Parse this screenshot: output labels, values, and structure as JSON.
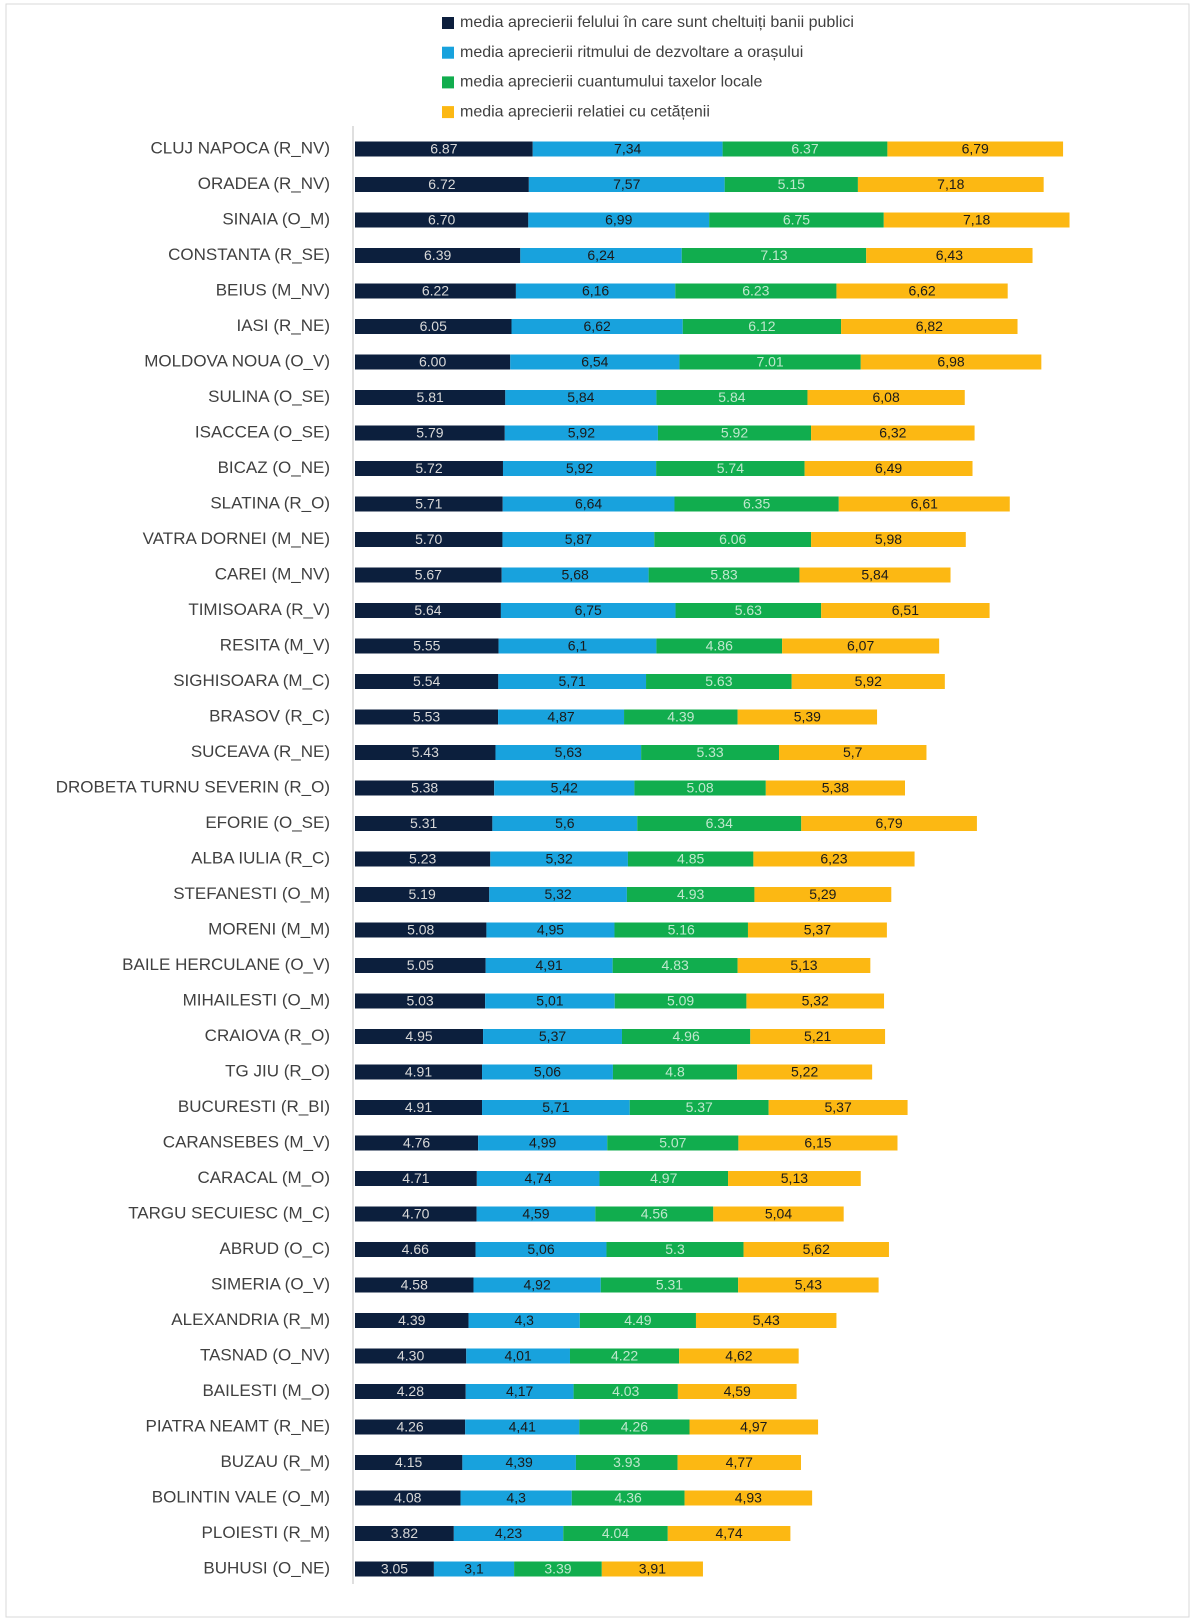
{
  "chart_data": {
    "type": "stacked_barh",
    "categories": [
      "CLUJ NAPOCA (R_NV)",
      "ORADEA  (R_NV)",
      "SINAIA (O_M)",
      "CONSTANTA (R_SE)",
      "BEIUS (M_NV)",
      "IASI (R_NE)",
      "MOLDOVA NOUA (O_V)",
      "SULINA (O_SE)",
      "ISACCEA (O_SE)",
      "BICAZ (O_NE)",
      "SLATINA (R_O)",
      "VATRA DORNEI (M_NE)",
      "CAREI (M_NV)",
      "TIMISOARA (R_V)",
      "RESITA (M_V)",
      "SIGHISOARA (M_C)",
      "BRASOV (R_C)",
      "SUCEAVA (R_NE)",
      "DROBETA TURNU SEVERIN (R_O)",
      "EFORIE (O_SE)",
      "ALBA IULIA (R_C)",
      "STEFANESTI (O_M)",
      "MORENI (M_M)",
      "BAILE HERCULANE (O_V)",
      "MIHAILESTI (O_M)",
      "CRAIOVA (R_O)",
      "TG JIU (R_O)",
      "BUCURESTI (R_BI)",
      "CARANSEBES (M_V)",
      "CARACAL (M_O)",
      "TARGU SECUIESC (M_C)",
      "ABRUD (O_C)",
      "SIMERIA (O_V)",
      "ALEXANDRIA (R_M)",
      "TASNAD (O_NV)",
      "BAILESTI (M_O)",
      "PIATRA NEAMT (R_NE)",
      "BUZAU (R_M)",
      "BOLINTIN VALE (O_M)",
      "PLOIESTI (R_M)",
      "BUHUSI (O_NE)"
    ],
    "series": [
      {
        "name": "media aprecierii felului în care sunt cheltuiți banii publici",
        "color": "#0c1f3d",
        "label_color": "#d9d9d9",
        "values": [
          6.87,
          6.72,
          6.7,
          6.39,
          6.22,
          6.05,
          6.0,
          5.81,
          5.79,
          5.72,
          5.71,
          5.7,
          5.67,
          5.64,
          5.55,
          5.54,
          5.53,
          5.43,
          5.38,
          5.31,
          5.23,
          5.19,
          5.08,
          5.05,
          5.03,
          4.95,
          4.91,
          4.91,
          4.76,
          4.71,
          4.7,
          4.66,
          4.58,
          4.39,
          4.3,
          4.28,
          4.26,
          4.15,
          4.08,
          3.82,
          3.05
        ],
        "value_labels": [
          "6.87",
          "6.72",
          "6.70",
          "6.39",
          "6.22",
          "6.05",
          "6.00",
          "5.81",
          "5.79",
          "5.72",
          "5.71",
          "5.70",
          "5.67",
          "5.64",
          "5.55",
          "5.54",
          "5.53",
          "5.43",
          "5.38",
          "5.31",
          "5.23",
          "5.19",
          "5.08",
          "5.05",
          "5.03",
          "4.95",
          "4.91",
          "4.91",
          "4.76",
          "4.71",
          "4.70",
          "4.66",
          "4.58",
          "4.39",
          "4.30",
          "4.28",
          "4.26",
          "4.15",
          "4.08",
          "3.82",
          "3.05"
        ]
      },
      {
        "name": "media aprecierii ritmului de dezvoltare a orașului",
        "color": "#18a2dd",
        "label_color": "#1a1a1a",
        "values": [
          7.34,
          7.57,
          6.99,
          6.24,
          6.16,
          6.62,
          6.54,
          5.84,
          5.92,
          5.92,
          6.64,
          5.87,
          5.68,
          6.75,
          6.1,
          5.71,
          4.87,
          5.63,
          5.42,
          5.6,
          5.32,
          5.32,
          4.95,
          4.91,
          5.01,
          5.37,
          5.06,
          5.71,
          4.99,
          4.74,
          4.59,
          5.06,
          4.92,
          4.3,
          4.01,
          4.17,
          4.41,
          4.39,
          4.3,
          4.23,
          3.1
        ],
        "value_labels": [
          "7,34",
          "7,57",
          "6,99",
          "6,24",
          "6,16",
          "6,62",
          "6,54",
          "5,84",
          "5,92",
          "5,92",
          "6,64",
          "5,87",
          "5,68",
          "6,75",
          "6,1",
          "5,71",
          "4,87",
          "5,63",
          "5,42",
          "5,6",
          "5,32",
          "5,32",
          "4,95",
          "4,91",
          "5,01",
          "5,37",
          "5,06",
          "5,71",
          "4,99",
          "4,74",
          "4,59",
          "5,06",
          "4,92",
          "4,3",
          "4,01",
          "4,17",
          "4,41",
          "4,39",
          "4,3",
          "4,23",
          "3,1"
        ]
      },
      {
        "name": "media aprecierii cuantumului taxelor locale",
        "color": "#11ad4e",
        "label_color": "#bfe8cd",
        "values": [
          6.37,
          5.15,
          6.75,
          7.13,
          6.23,
          6.12,
          7.01,
          5.84,
          5.92,
          5.74,
          6.35,
          6.06,
          5.83,
          5.63,
          4.86,
          5.63,
          4.39,
          5.33,
          5.08,
          6.34,
          4.85,
          4.93,
          5.16,
          4.83,
          5.09,
          4.96,
          4.8,
          5.37,
          5.07,
          4.97,
          4.56,
          5.3,
          5.31,
          4.49,
          4.22,
          4.03,
          4.26,
          3.93,
          4.36,
          4.04,
          3.39
        ],
        "value_labels": [
          "6.37",
          "5.15",
          "6.75",
          "7.13",
          "6.23",
          "6.12",
          "7.01",
          "5.84",
          "5.92",
          "5.74",
          "6.35",
          "6.06",
          "5.83",
          "5.63",
          "4.86",
          "5.63",
          "4.39",
          "5.33",
          "5.08",
          "6.34",
          "4.85",
          "4.93",
          "5.16",
          "4.83",
          "5.09",
          "4.96",
          "4.8",
          "5.37",
          "5.07",
          "4.97",
          "4.56",
          "5.3",
          "5.31",
          "4.49",
          "4.22",
          "4.03",
          "4.26",
          "3.93",
          "4.36",
          "4.04",
          "3.39"
        ]
      },
      {
        "name": "media aprecierii relatiei cu cetățenii",
        "color": "#fcb813",
        "label_color": "#1a1a1a",
        "values": [
          6.79,
          7.18,
          7.18,
          6.43,
          6.62,
          6.82,
          6.98,
          6.08,
          6.32,
          6.49,
          6.61,
          5.98,
          5.84,
          6.51,
          6.07,
          5.92,
          5.39,
          5.7,
          5.38,
          6.79,
          6.23,
          5.29,
          5.37,
          5.13,
          5.32,
          5.21,
          5.22,
          5.37,
          6.15,
          5.13,
          5.04,
          5.62,
          5.43,
          5.43,
          4.62,
          4.59,
          4.97,
          4.77,
          4.93,
          4.74,
          3.91
        ],
        "value_labels": [
          "6,79",
          "7,18",
          "7,18",
          "6,43",
          "6,62",
          "6,82",
          "6,98",
          "6,08",
          "6,32",
          "6,49",
          "6,61",
          "5,98",
          "5,84",
          "6,51",
          "6,07",
          "5,92",
          "5,39",
          "5,7",
          "5,38",
          "6,79",
          "6,23",
          "5,29",
          "5,37",
          "5,13",
          "5,32",
          "5,21",
          "5,22",
          "5,37",
          "6,15",
          "5,13",
          "5,04",
          "5,62",
          "5,43",
          "5,43",
          "4,62",
          "4,59",
          "4,97",
          "4,77",
          "4,93",
          "4,74",
          "3,91"
        ]
      }
    ]
  }
}
